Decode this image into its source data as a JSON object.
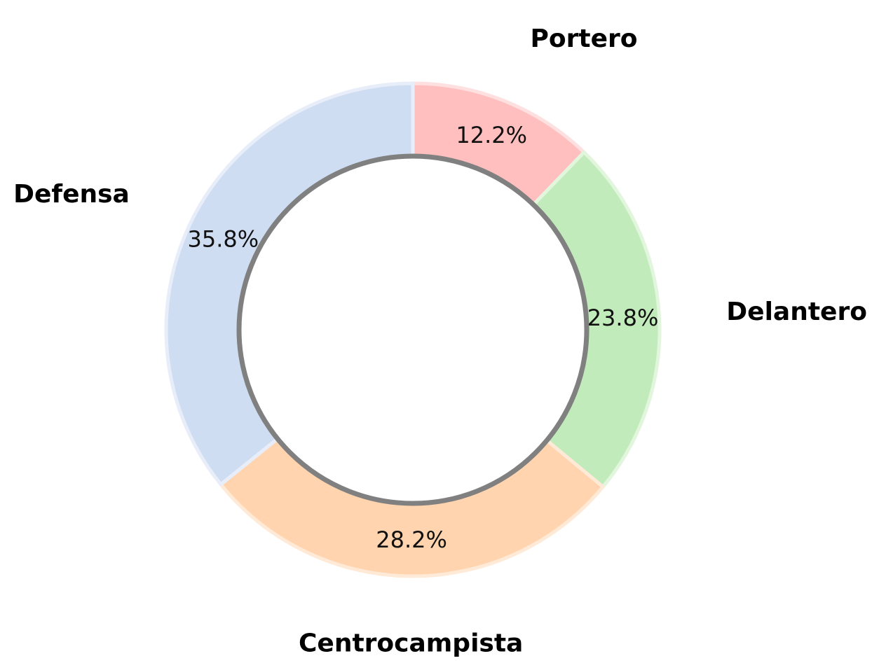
{
  "chart_data": {
    "type": "pie",
    "donut": true,
    "title": "",
    "start_angle_deg": 90,
    "direction": "clockwise",
    "slices": [
      {
        "label": "Portero",
        "value": 12.2,
        "value_label": "12.2%",
        "color": "#ffbfbf",
        "edge_color": "#ffe0e0"
      },
      {
        "label": "Delantero",
        "value": 23.8,
        "value_label": "23.8%",
        "color": "#c2ebbb",
        "edge_color": "#e2f6de"
      },
      {
        "label": "Centrocampista",
        "value": 28.2,
        "value_label": "28.2%",
        "color": "#ffd4ae",
        "edge_color": "#ffead7"
      },
      {
        "label": "Defensa",
        "value": 35.8,
        "value_label": "35.8%",
        "color": "#cfddf2",
        "edge_color": "#e8eef9"
      }
    ],
    "hole_outline_color": "#808080",
    "legend": "none"
  }
}
